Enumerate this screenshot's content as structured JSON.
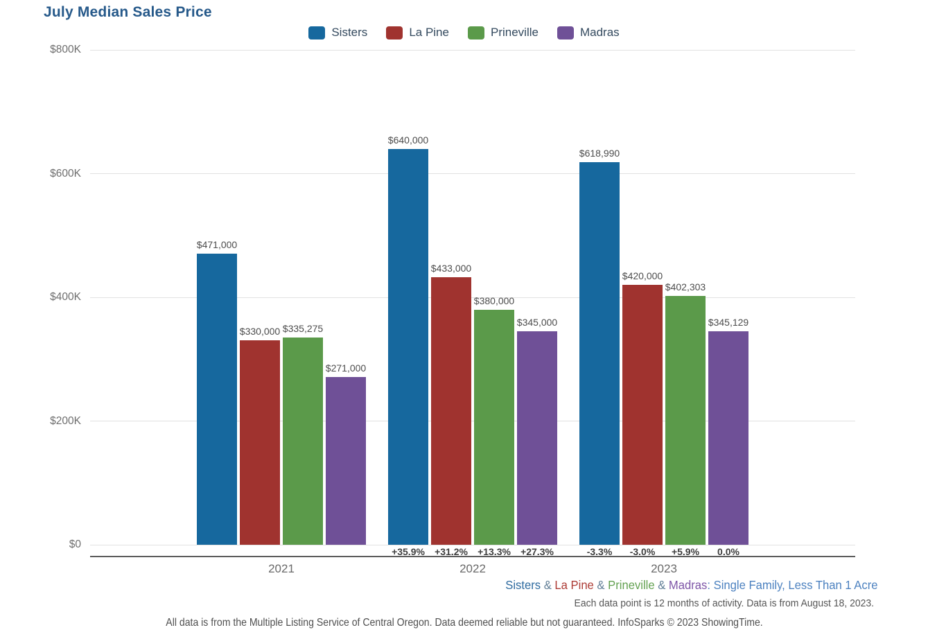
{
  "header": {
    "title": "July Median Sales Price"
  },
  "chart_data": {
    "type": "bar",
    "title": "July Median Sales Price",
    "categories": [
      "2021",
      "2022",
      "2023"
    ],
    "series": [
      {
        "name": "Sisters",
        "color": "#16689e",
        "values": [
          471000,
          640000,
          618990
        ],
        "value_labels": [
          "$471,000",
          "$640,000",
          "$618,990"
        ],
        "pct_change": [
          "",
          "+35.9%",
          "-3.3%"
        ]
      },
      {
        "name": "La Pine",
        "color": "#a0332f",
        "values": [
          330000,
          433000,
          420000
        ],
        "value_labels": [
          "$330,000",
          "$433,000",
          "$420,000"
        ],
        "pct_change": [
          "",
          "+31.2%",
          "-3.0%"
        ]
      },
      {
        "name": "Prineville",
        "color": "#5b9a4a",
        "values": [
          335275,
          380000,
          402303
        ],
        "value_labels": [
          "$335,275",
          "$380,000",
          "$402,303"
        ],
        "pct_change": [
          "",
          "+13.3%",
          "+5.9%"
        ]
      },
      {
        "name": "Madras",
        "color": "#6f5097",
        "values": [
          271000,
          345000,
          345129
        ],
        "value_labels": [
          "$271,000",
          "$345,000",
          "$345,129"
        ],
        "pct_change": [
          "",
          "+27.3%",
          "0.0%"
        ]
      }
    ],
    "ylim": [
      0,
      800000
    ],
    "yticks": {
      "labels": [
        "$800K",
        "$600K",
        "$400K",
        "$200K",
        "$0"
      ],
      "values": [
        800000,
        600000,
        400000,
        200000,
        0
      ]
    },
    "grid": true,
    "legend_position": "top"
  },
  "footnotes": {
    "line1_segments": [
      {
        "text": "Sisters",
        "color": "#2d6a9f"
      },
      {
        "text": " & ",
        "color": "#5f7d95"
      },
      {
        "text": "La Pine",
        "color": "#ad3c36"
      },
      {
        "text": " & ",
        "color": "#5f7d95"
      },
      {
        "text": "Prineville",
        "color": "#63a151"
      },
      {
        "text": " & ",
        "color": "#5f7d95"
      },
      {
        "text": "Madras",
        "color": "#7e55a7"
      },
      {
        "text": ": Single Family, Less Than 1 Acre",
        "color": "#4d82c0"
      }
    ],
    "line2": "Each data point is 12 months of activity. Data is from August 18, 2023.",
    "line3": "All data is from the Multiple Listing Service of Central Oregon. Data deemed reliable but not guaranteed. InfoSparks © 2023 ShowingTime."
  }
}
